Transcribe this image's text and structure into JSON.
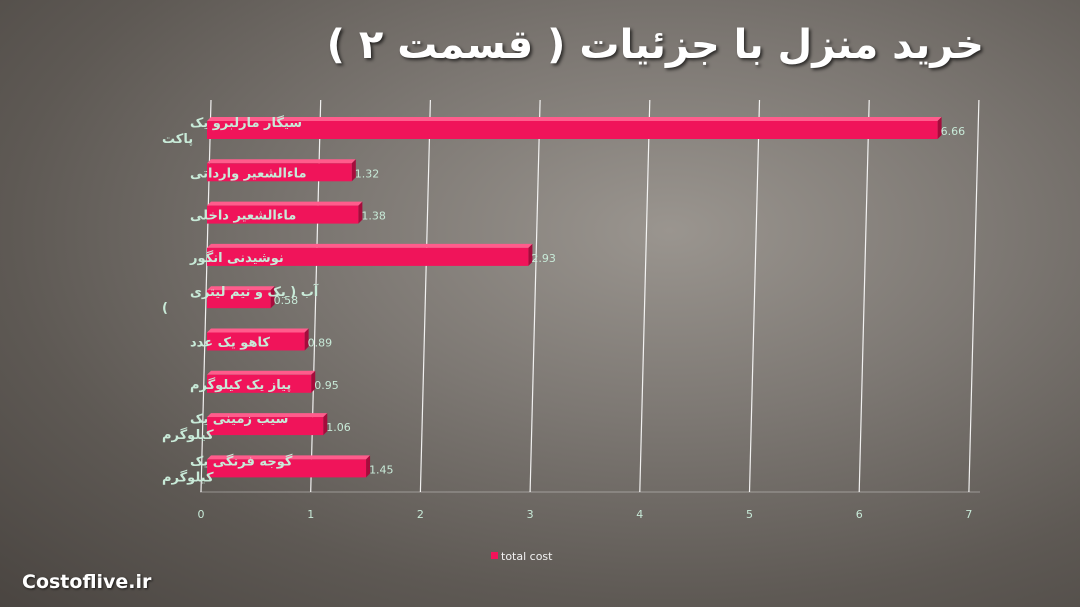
{
  "chart_data": {
    "type": "bar",
    "orientation": "horizontal",
    "title": "خرید منزل با جزئیات ( قسمت ۲ )",
    "categories": [
      "سیگار مارلبرو یک پاکت",
      "ماءالشعیر وارداتی",
      "ماءالشعیر داخلی",
      "نوشیدنی انگور",
      "آب ( یک و نیم لیتری )",
      "کاهو  یک عدد",
      "پیاز یک کیلوگرم",
      "سیب زمینی یک کیلوگرم",
      "گوجه فرنگی یک کیلوگرم"
    ],
    "series": [
      {
        "name": "total cost",
        "values": [
          6.66,
          1.32,
          1.38,
          2.93,
          0.58,
          0.89,
          0.95,
          1.06,
          1.45
        ],
        "data_labels": [
          "6.66",
          "1.32",
          "1.38",
          "2.93",
          "0.58",
          "0.89",
          "0.95",
          "1.06",
          "1.45"
        ]
      }
    ],
    "xlim": [
      0,
      7
    ],
    "x_ticks": [
      "0",
      "1",
      "2",
      "3",
      "4",
      "5",
      "6",
      "7"
    ],
    "grid": true,
    "legend_position": "bottom",
    "colors": {
      "bar": "#f0145a",
      "bar_shade": "#a50c3c",
      "label_text": "#c8ead8",
      "gridline": "#ffffff"
    }
  },
  "watermark": "Costoflive.ir"
}
